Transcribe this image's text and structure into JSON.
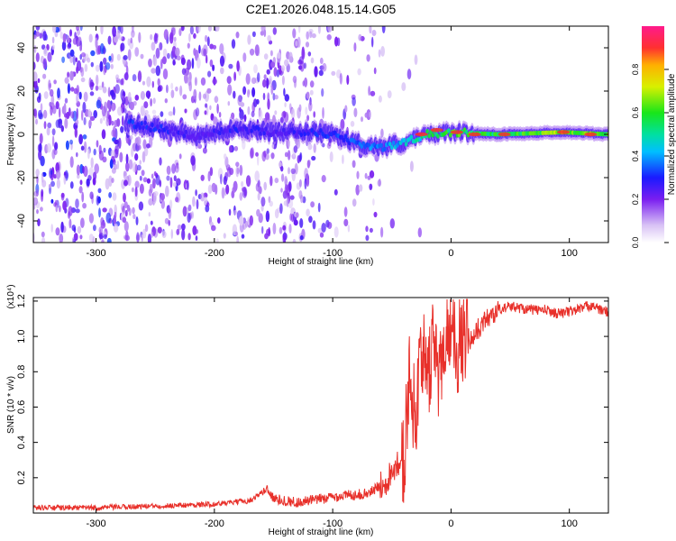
{
  "figure_title": "C2E1.2026.048.15.14.G05",
  "colors": {
    "snr_line": "#e8302a",
    "axis": "#000000"
  },
  "chart_data": [
    {
      "type": "heatmap",
      "title": "C2E1.2026.048.15.14.G05",
      "xlabel": "Height of straight line (km)",
      "ylabel": "Frequency (Hz)",
      "xlim": [
        -353,
        133
      ],
      "ylim": [
        -50,
        50
      ],
      "xticks": [
        -300,
        -200,
        -100,
        0,
        100
      ],
      "xtick_labels": [
        "-300",
        "-200",
        "-100",
        "0",
        "100"
      ],
      "yticks": [
        -40,
        -20,
        0,
        20,
        40
      ],
      "ytick_labels": [
        "-40",
        "-20",
        "0",
        "20",
        "40"
      ],
      "colorbar": {
        "label": "Normalized spectral amplitude",
        "range": [
          0,
          1
        ],
        "ticks": [
          0,
          0.2,
          0.4,
          0.6,
          0.8
        ],
        "tick_labels": [
          "0.0",
          "0.2",
          "0.4",
          "0.6",
          "0.8"
        ],
        "colormap": "white-violet-blue-cyan-green-yellow-red"
      },
      "ridge": {
        "description": "dominant Doppler frequency track",
        "points": [
          {
            "h": -270,
            "f": 5,
            "amp": 0.45
          },
          {
            "h": -240,
            "f": 2,
            "amp": 0.4
          },
          {
            "h": -215,
            "f": -1,
            "amp": 0.35
          },
          {
            "h": -180,
            "f": 3,
            "amp": 0.4
          },
          {
            "h": -150,
            "f": 1,
            "amp": 0.35
          },
          {
            "h": -120,
            "f": 1,
            "amp": 0.4
          },
          {
            "h": -100,
            "f": 0,
            "amp": 0.45
          },
          {
            "h": -80,
            "f": -4,
            "amp": 0.5
          },
          {
            "h": -60,
            "f": -6,
            "amp": 0.55
          },
          {
            "h": -40,
            "f": -4,
            "amp": 0.6
          },
          {
            "h": -20,
            "f": 0,
            "amp": 0.75
          },
          {
            "h": 0,
            "f": 1,
            "amp": 0.85
          },
          {
            "h": 40,
            "f": 0,
            "amp": 0.8
          },
          {
            "h": 95,
            "f": 1,
            "amp": 0.95
          },
          {
            "h": 133,
            "f": 0,
            "amp": 0.9
          }
        ]
      }
    },
    {
      "type": "line",
      "xlabel": "Height of straight line (km)",
      "ylabel": "SNR (10 * v/v)",
      "y_scale_label": "(x10⁴)",
      "xlim": [
        -353,
        133
      ],
      "ylim": [
        0,
        1.22
      ],
      "xticks": [
        -300,
        -200,
        -100,
        0,
        100
      ],
      "xtick_labels": [
        "-300",
        "-200",
        "-100",
        "0",
        "100"
      ],
      "yticks": [
        0.2,
        0.4,
        0.6,
        0.8,
        1.0,
        1.2
      ],
      "ytick_labels": [
        "0.2",
        "0.4",
        "0.6",
        "0.8",
        "1.0",
        "1.2"
      ],
      "series": [
        {
          "name": "SNR",
          "x": [
            -353,
            -300,
            -250,
            -200,
            -170,
            -155,
            -150,
            -130,
            -110,
            -90,
            -70,
            -55,
            -45,
            -40,
            -35,
            -30,
            -25,
            -20,
            -15,
            -10,
            -5,
            0,
            5,
            10,
            15,
            20,
            30,
            40,
            50,
            60,
            70,
            80,
            90,
            100,
            110,
            120,
            125,
            133
          ],
          "y": [
            0.03,
            0.03,
            0.04,
            0.05,
            0.07,
            0.14,
            0.08,
            0.06,
            0.08,
            0.1,
            0.11,
            0.18,
            0.3,
            0.2,
            0.7,
            0.45,
            0.9,
            0.6,
            0.95,
            0.7,
            0.9,
            1.05,
            0.85,
            0.9,
            0.95,
            1.02,
            1.1,
            1.15,
            1.17,
            1.16,
            1.15,
            1.15,
            1.13,
            1.14,
            1.16,
            1.18,
            1.15,
            1.14
          ]
        }
      ]
    }
  ]
}
